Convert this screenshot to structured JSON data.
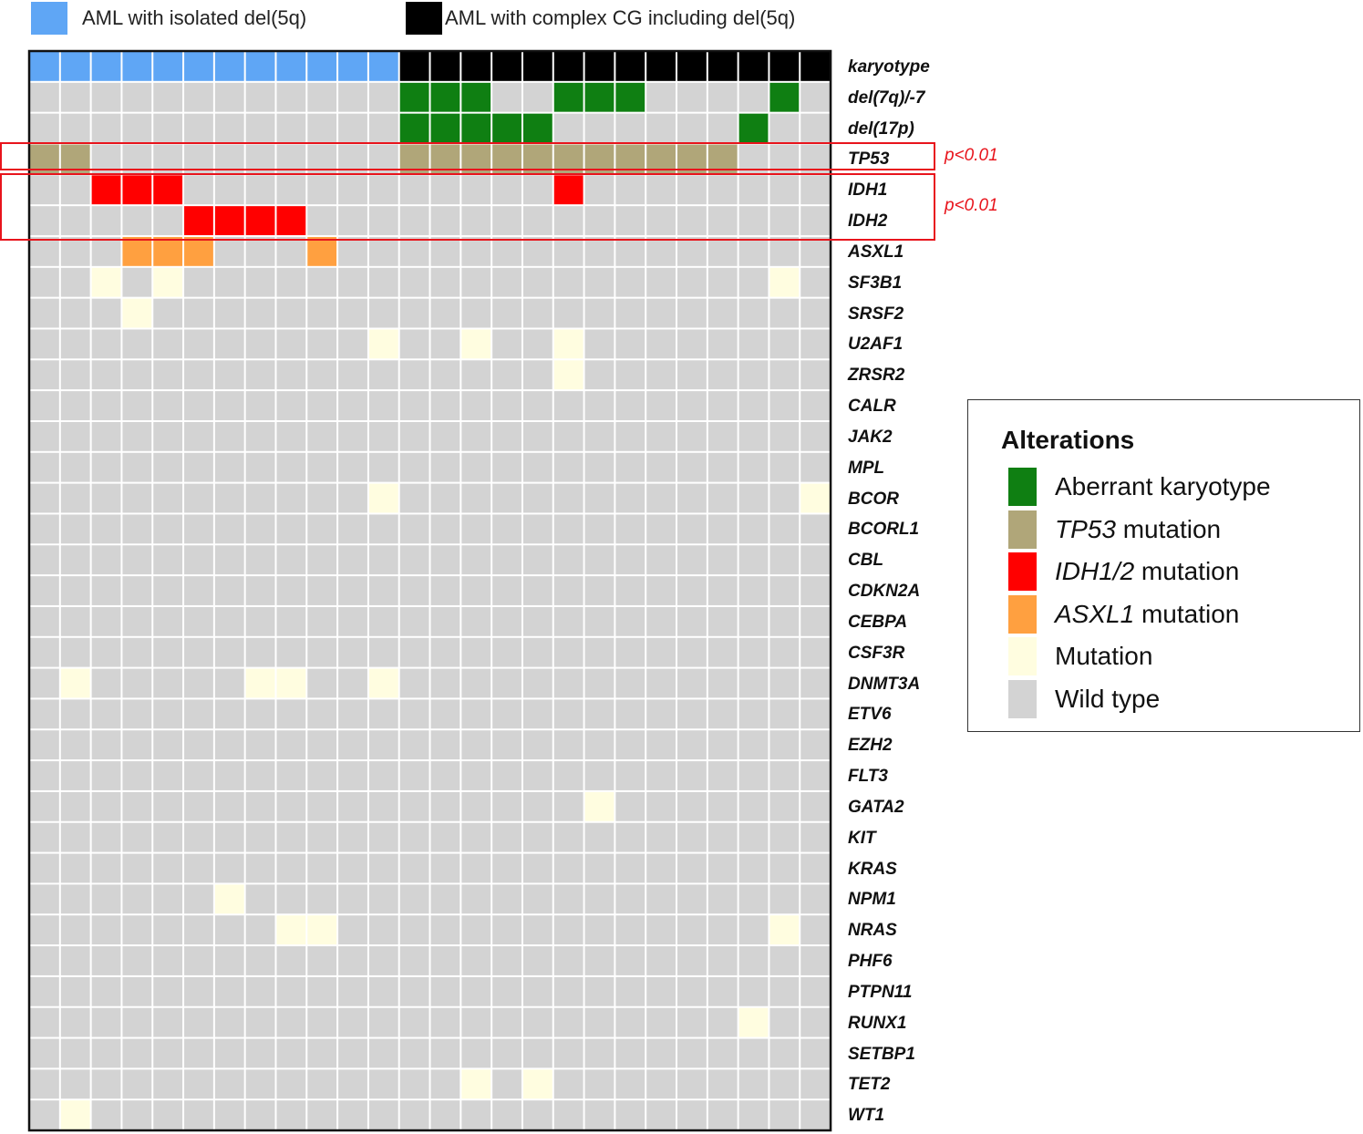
{
  "groups": [
    {
      "label": "AML with isolated del(5q)",
      "color": "#5fa6f5"
    },
    {
      "label": "AML with complex CG including  del(5q)",
      "color": "#000000"
    }
  ],
  "colors": {
    "karyo_isolated": "#5fa6f5",
    "karyo_complex": "#000000",
    "aberrant": "#0f7f12",
    "tp53": "#b0a679",
    "idh": "#ff0000",
    "asxl1": "#ffa040",
    "mutation": "#fffde0",
    "wild": "#d3d3d3",
    "highlight": "#e8141c"
  },
  "chart_data": {
    "type": "heatmap",
    "title": "",
    "n_patients": 26,
    "rows": [
      {
        "label": "karyotype",
        "cells": "IIIIIIIIIIIICCCCCCCCCCCCCC"
      },
      {
        "label": "del(7q)/-7",
        "cells": "WWWWWWWWWWWWAAAWWAAAWWWWAW"
      },
      {
        "label": "del(17p)",
        "cells": "WWWWWWWWWWWWAAAAAWWWWWWAWW"
      },
      {
        "label": "TP53",
        "cells": "TTWWWWWWWWWWTTTTTTTTTTTWWW"
      },
      {
        "label": "IDH1",
        "cells": "WWRRRWWWWWWWWWWWWRWWWWWWWW"
      },
      {
        "label": "IDH2",
        "cells": "WWWWWRRRRWWWWWWWWWWWWWWWWW"
      },
      {
        "label": "ASXL1",
        "cells": "WWWOOOWWWOWWWWWWWWWWWWWWWW"
      },
      {
        "label": "SF3B1",
        "cells": "WWMWMWWWWWWWWWWWWWWWWWWWMW"
      },
      {
        "label": "SRSF2",
        "cells": "WWWMWWWWWWWWWWWWWWWWWWWWWW"
      },
      {
        "label": "U2AF1",
        "cells": "WWWWWWWWWWWMWWMWWMWWWWWWWW"
      },
      {
        "label": "ZRSR2",
        "cells": "WWWWWWWWWWWWWWWWWMWWWWWWWW"
      },
      {
        "label": "CALR",
        "cells": "WWWWWWWWWWWWWWWWWWWWWWWWWW"
      },
      {
        "label": "JAK2",
        "cells": "WWWWWWWWWWWWWWWWWWWWWWWWWW"
      },
      {
        "label": "MPL",
        "cells": "WWWWWWWWWWWWWWWWWWWWWWWWWW"
      },
      {
        "label": "BCOR",
        "cells": "WWWWWWWWWWWMWWWWWWWWWWWWWM"
      },
      {
        "label": "BCORL1",
        "cells": "WWWWWWWWWWWWWWWWWWWWWWWWWW"
      },
      {
        "label": "CBL",
        "cells": "WWWWWWWWWWWWWWWWWWWWWWWWWW"
      },
      {
        "label": "CDKN2A",
        "cells": "WWWWWWWWWWWWWWWWWWWWWWWWWW"
      },
      {
        "label": "CEBPA",
        "cells": "WWWWWWWWWWWWWWWWWWWWWWWWWW"
      },
      {
        "label": "CSF3R",
        "cells": "WWWWWWWWWWWWWWWWWWWWWWWWWW"
      },
      {
        "label": "DNMT3A",
        "cells": "WMWWWWWMMWWMWWWWWWWWWWWWWW"
      },
      {
        "label": "ETV6",
        "cells": "WWWWWWWWWWWWWWWWWWWWWWWWWW"
      },
      {
        "label": "EZH2",
        "cells": "WWWWWWWWWWWWWWWWWWWWWWWWWW"
      },
      {
        "label": "FLT3",
        "cells": "WWWWWWWWWWWWWWWWWWWWWWWWWW"
      },
      {
        "label": "GATA2",
        "cells": "WWWWWWWWWWWWWWWWWWMWWWWWWW"
      },
      {
        "label": "KIT",
        "cells": "WWWWWWWWWWWWWWWWWWWWWWWWWW"
      },
      {
        "label": "KRAS",
        "cells": "WWWWWWWWWWWWWWWWWWWWWWWWWW"
      },
      {
        "label": "NPM1",
        "cells": "WWWWWWMWWWWWWWWWWWWWWWWWWW"
      },
      {
        "label": "NRAS",
        "cells": "WWWWWWWWMMWWWWWWWWWWWWWWMW"
      },
      {
        "label": "PHF6",
        "cells": "WWWWWWWWWWWWWWWWWWWWWWWWWW"
      },
      {
        "label": "PTPN11",
        "cells": "WWWWWWWWWWWWWWWWWWWWWWWWWW"
      },
      {
        "label": "RUNX1",
        "cells": "WWWWWWWWWWWWWWWWWWWWWWWMWW"
      },
      {
        "label": "SETBP1",
        "cells": "WWWWWWWWWWWWWWWWWWWWWWWWWW"
      },
      {
        "label": "TET2",
        "cells": "WWWWWWWWWWWWWWMWMWWWWWWWWW"
      },
      {
        "label": "WT1",
        "cells": "WMWWWWWWWWWWWWWWWWWWWWWWWW"
      }
    ],
    "cell_codes": {
      "I": "AML with isolated del(5q)",
      "C": "AML with complex CG including del(5q)",
      "A": "Aberrant karyotype",
      "T": "TP53 mutation",
      "R": "IDH1/2 mutation",
      "O": "ASXL1 mutation",
      "M": "Mutation",
      "W": "Wild type"
    },
    "annotations": [
      {
        "rows": [
          "TP53"
        ],
        "text": "p<0.01"
      },
      {
        "rows": [
          "IDH1",
          "IDH2"
        ],
        "text": "p<0.01"
      }
    ]
  },
  "legend": {
    "title": "Alterations",
    "items": [
      {
        "italic": "",
        "text": "Aberrant karyotype",
        "color": "#0f7f12"
      },
      {
        "italic": "TP53",
        "text": " mutation",
        "color": "#b0a679"
      },
      {
        "italic": "IDH1/2",
        "text": " mutation",
        "color": "#ff0000"
      },
      {
        "italic": "ASXL1",
        "text": " mutation",
        "color": "#ffa040"
      },
      {
        "italic": "",
        "text": "Mutation",
        "color": "#fffde0"
      },
      {
        "italic": "",
        "text": "Wild type",
        "color": "#d3d3d3"
      }
    ]
  }
}
